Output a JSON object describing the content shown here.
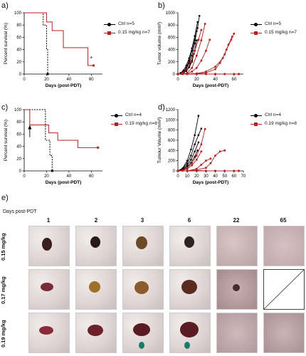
{
  "panels": {
    "a": "a)",
    "b": "b)",
    "c": "c)",
    "d": "d)",
    "e": "e)"
  },
  "annotations": {
    "asterisk": "*"
  },
  "colors": {
    "ctrl": "#000000",
    "treated": "#b22222"
  },
  "chart_data": [
    {
      "id": "a",
      "type": "line",
      "xlabel": "Days (post-PDT)",
      "ylabel": "Percent survival (%)",
      "xlim": [
        0,
        70
      ],
      "ylim": [
        0,
        100
      ],
      "xticks": [
        0,
        20,
        40,
        60
      ],
      "yticks": [
        0,
        20,
        40,
        60,
        80,
        100
      ],
      "step": true,
      "series": [
        {
          "name": "Ctrl n=5",
          "color": "#000000",
          "x": [
            0,
            17,
            20,
            21
          ],
          "y": [
            100,
            80,
            40,
            0
          ]
        },
        {
          "name": "0.15 mg/kg n=7",
          "color": "#b22222",
          "x": [
            0,
            20,
            25,
            35,
            57,
            62
          ],
          "y": [
            100,
            85,
            71,
            43,
            14,
            14
          ]
        }
      ]
    },
    {
      "id": "b",
      "type": "line",
      "xlabel": "Days (post-PDT)",
      "ylabel": "Tumor volume (mm³)",
      "xlim": [
        0,
        70
      ],
      "ylim": [
        0,
        1000
      ],
      "xticks": [
        0,
        20,
        40,
        60
      ],
      "yticks": [
        0,
        200,
        400,
        600,
        800,
        1000
      ],
      "series": [
        {
          "name": "Ctrl n=5",
          "color": "#000000",
          "x": [
            0,
            3,
            6,
            9,
            12,
            15,
            18,
            21,
            23
          ],
          "y": [
            0,
            10,
            40,
            100,
            220,
            380,
            560,
            750,
            950
          ]
        },
        {
          "name": "",
          "color": "#000000",
          "x": [
            0,
            3,
            6,
            9,
            12,
            15,
            18,
            21
          ],
          "y": [
            0,
            20,
            60,
            140,
            260,
            420,
            620,
            850
          ]
        },
        {
          "name": "",
          "color": "#000000",
          "x": [
            0,
            3,
            6,
            9,
            12,
            15,
            18,
            20
          ],
          "y": [
            0,
            15,
            40,
            90,
            180,
            300,
            500,
            700
          ]
        },
        {
          "name": "",
          "color": "#000000",
          "x": [
            0,
            3,
            6,
            9,
            12,
            15,
            18,
            20
          ],
          "y": [
            0,
            10,
            30,
            60,
            120,
            220,
            380,
            550
          ]
        },
        {
          "name": "",
          "color": "#000000",
          "x": [
            0,
            3,
            6,
            9,
            12,
            15,
            17
          ],
          "y": [
            0,
            5,
            20,
            50,
            110,
            200,
            330
          ]
        },
        {
          "name": "0.15 mg/kg n=7",
          "color": "#b22222",
          "x": [
            0,
            5,
            10,
            14,
            18,
            22,
            25
          ],
          "y": [
            0,
            20,
            80,
            200,
            380,
            560,
            720
          ]
        },
        {
          "name": "",
          "color": "#b22222",
          "x": [
            0,
            5,
            10,
            15,
            20,
            25,
            29
          ],
          "y": [
            0,
            0,
            20,
            100,
            300,
            550,
            820
          ]
        },
        {
          "name": "",
          "color": "#b22222",
          "x": [
            0,
            5,
            10,
            15,
            20,
            25,
            30,
            34
          ],
          "y": [
            0,
            0,
            10,
            40,
            100,
            220,
            380,
            560
          ]
        },
        {
          "name": "",
          "color": "#b22222",
          "x": [
            0,
            10,
            20,
            30,
            40,
            45,
            50,
            54,
            58
          ],
          "y": [
            0,
            0,
            5,
            20,
            80,
            180,
            320,
            480,
            610
          ]
        },
        {
          "name": "",
          "color": "#b22222",
          "x": [
            0,
            10,
            20,
            30,
            40,
            48,
            52,
            57,
            60
          ],
          "y": [
            0,
            0,
            10,
            40,
            120,
            260,
            400,
            560,
            660
          ]
        },
        {
          "name": "",
          "color": "#b22222",
          "x": [
            0,
            10,
            20,
            30,
            40,
            50,
            60,
            65
          ],
          "y": [
            0,
            0,
            0,
            0,
            0,
            0,
            0,
            0
          ]
        },
        {
          "name": "",
          "color": "#b22222",
          "x": [
            0,
            10,
            20,
            30,
            40,
            50,
            60,
            65
          ],
          "y": [
            0,
            0,
            5,
            0,
            0,
            0,
            0,
            0
          ]
        }
      ]
    },
    {
      "id": "c",
      "type": "line",
      "xlabel": "Days (post-PDT)",
      "ylabel": "Percent survival (%)",
      "xlim": [
        0,
        70
      ],
      "ylim": [
        0,
        100
      ],
      "xticks": [
        0,
        20,
        40,
        60
      ],
      "yticks": [
        0,
        20,
        40,
        60,
        80,
        100
      ],
      "step": true,
      "series": [
        {
          "name": "Ctrl n=4",
          "color": "#000000",
          "x": [
            0,
            19,
            23,
            25
          ],
          "y": [
            100,
            50,
            25,
            0
          ]
        },
        {
          "name": "0.19 mg/kg n=8",
          "color": "#b22222",
          "x": [
            0,
            5,
            22,
            30,
            48,
            66
          ],
          "y": [
            100,
            75,
            62,
            50,
            38,
            38
          ]
        }
      ]
    },
    {
      "id": "d",
      "type": "line",
      "xlabel": "Days (post-PDT)",
      "ylabel": "Tumour Volume (mm³)",
      "xlim": [
        0,
        70
      ],
      "ylim": [
        0,
        1200
      ],
      "xticks": [
        0,
        10,
        20,
        30,
        40,
        50,
        60,
        70
      ],
      "yticks": [
        0,
        200,
        400,
        600,
        800,
        1000,
        1200
      ],
      "series": [
        {
          "name": "Ctrl n=4",
          "color": "#000000",
          "x": [
            0,
            5,
            10,
            14,
            18,
            22
          ],
          "y": [
            0,
            50,
            200,
            420,
            700,
            1080
          ]
        },
        {
          "name": "",
          "color": "#000000",
          "x": [
            0,
            5,
            10,
            14,
            18,
            22,
            25
          ],
          "y": [
            0,
            40,
            150,
            300,
            520,
            700,
            830
          ]
        },
        {
          "name": "",
          "color": "#000000",
          "x": [
            0,
            5,
            10,
            14,
            18,
            22
          ],
          "y": [
            0,
            30,
            110,
            220,
            380,
            560
          ]
        },
        {
          "name": "",
          "color": "#000000",
          "x": [
            0,
            5,
            10,
            14,
            18,
            21
          ],
          "y": [
            0,
            20,
            80,
            160,
            280,
            400
          ]
        },
        {
          "name": "0.19 mg/kg n=8",
          "color": "#b22222",
          "x": [
            0,
            5,
            10,
            15,
            20,
            25,
            29
          ],
          "y": [
            0,
            10,
            60,
            150,
            300,
            520,
            820
          ]
        },
        {
          "name": "",
          "color": "#b22222",
          "x": [
            0,
            5,
            10,
            15,
            20,
            25
          ],
          "y": [
            0,
            5,
            40,
            110,
            220,
            380
          ]
        },
        {
          "name": "",
          "color": "#b22222",
          "x": [
            0,
            10,
            20,
            30,
            35,
            40,
            45,
            50
          ],
          "y": [
            0,
            0,
            20,
            60,
            150,
            300,
            380,
            400
          ]
        },
        {
          "name": "",
          "color": "#b22222",
          "x": [
            0,
            10,
            20,
            25,
            30,
            35
          ],
          "y": [
            0,
            0,
            40,
            120,
            200,
            240
          ]
        },
        {
          "name": "",
          "color": "#b22222",
          "x": [
            0,
            10,
            20,
            30,
            40,
            50,
            60,
            65
          ],
          "y": [
            0,
            0,
            0,
            0,
            0,
            0,
            0,
            0
          ]
        },
        {
          "name": "",
          "color": "#b22222",
          "x": [
            0,
            10,
            20,
            30,
            40,
            50,
            60,
            65
          ],
          "y": [
            0,
            0,
            10,
            0,
            0,
            0,
            0,
            0
          ]
        }
      ]
    }
  ],
  "photos": {
    "days_label": "Days post-PDT",
    "columns": [
      "1",
      "2",
      "3",
      "6",
      "22",
      "65"
    ],
    "rows": [
      "0.15 mg/kg",
      "0.17 mg/kg",
      "0.19 mg/kg"
    ]
  }
}
